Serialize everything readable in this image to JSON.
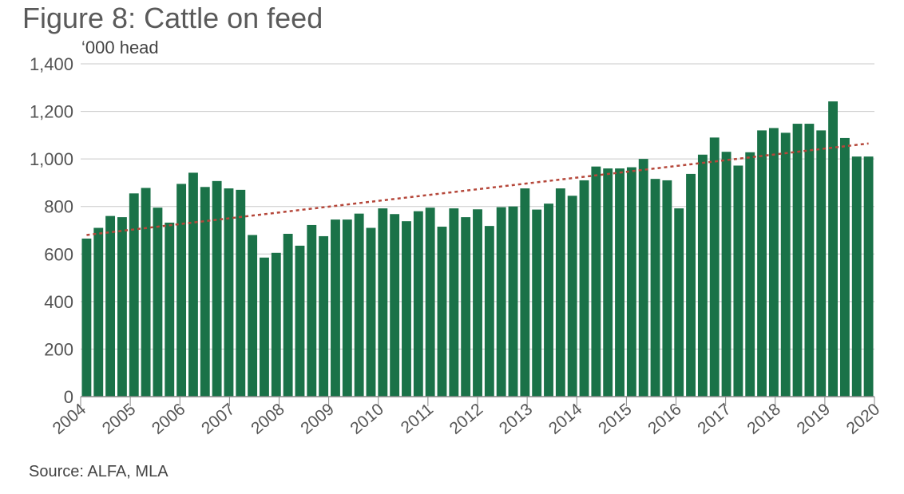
{
  "chart_data": {
    "type": "bar",
    "title": "Figure 8: Cattle on feed",
    "ylabel": "‘000 head",
    "source": "Source: ALFA, MLA",
    "ylim": [
      0,
      1400
    ],
    "yticks": [
      "0",
      "200",
      "400",
      "600",
      "800",
      "1,000",
      "1,200",
      "1,400"
    ],
    "ytick_values": [
      0,
      200,
      400,
      600,
      800,
      1000,
      1200,
      1400
    ],
    "xtick_labels": [
      "2004",
      "2005",
      "2006",
      "2007",
      "2008",
      "2009",
      "2010",
      "2011",
      "2012",
      "2013",
      "2014",
      "2015",
      "2016",
      "2017",
      "2018",
      "2019",
      "2020"
    ],
    "grid": true,
    "bar_color": "#1a7248",
    "trend_color": "#b5473a",
    "series": [
      {
        "values": [
          665,
          710,
          760,
          755,
          855,
          878,
          795,
          732,
          895,
          942,
          882,
          907,
          876,
          870,
          680,
          585,
          605,
          685,
          635,
          722,
          675,
          745,
          745,
          770,
          710,
          792,
          768,
          738,
          780,
          795,
          715,
          792,
          755,
          788,
          718,
          797,
          800,
          876,
          787,
          812,
          876,
          845,
          910,
          968,
          960,
          960,
          965,
          1000,
          916,
          910,
          792,
          937,
          1018,
          1090,
          1030,
          972,
          1028,
          1120,
          1130,
          1110,
          1148,
          1148,
          1120,
          1242,
          1088,
          1010,
          1010
        ]
      }
    ],
    "trend": {
      "start": 680,
      "end": 1065
    }
  }
}
